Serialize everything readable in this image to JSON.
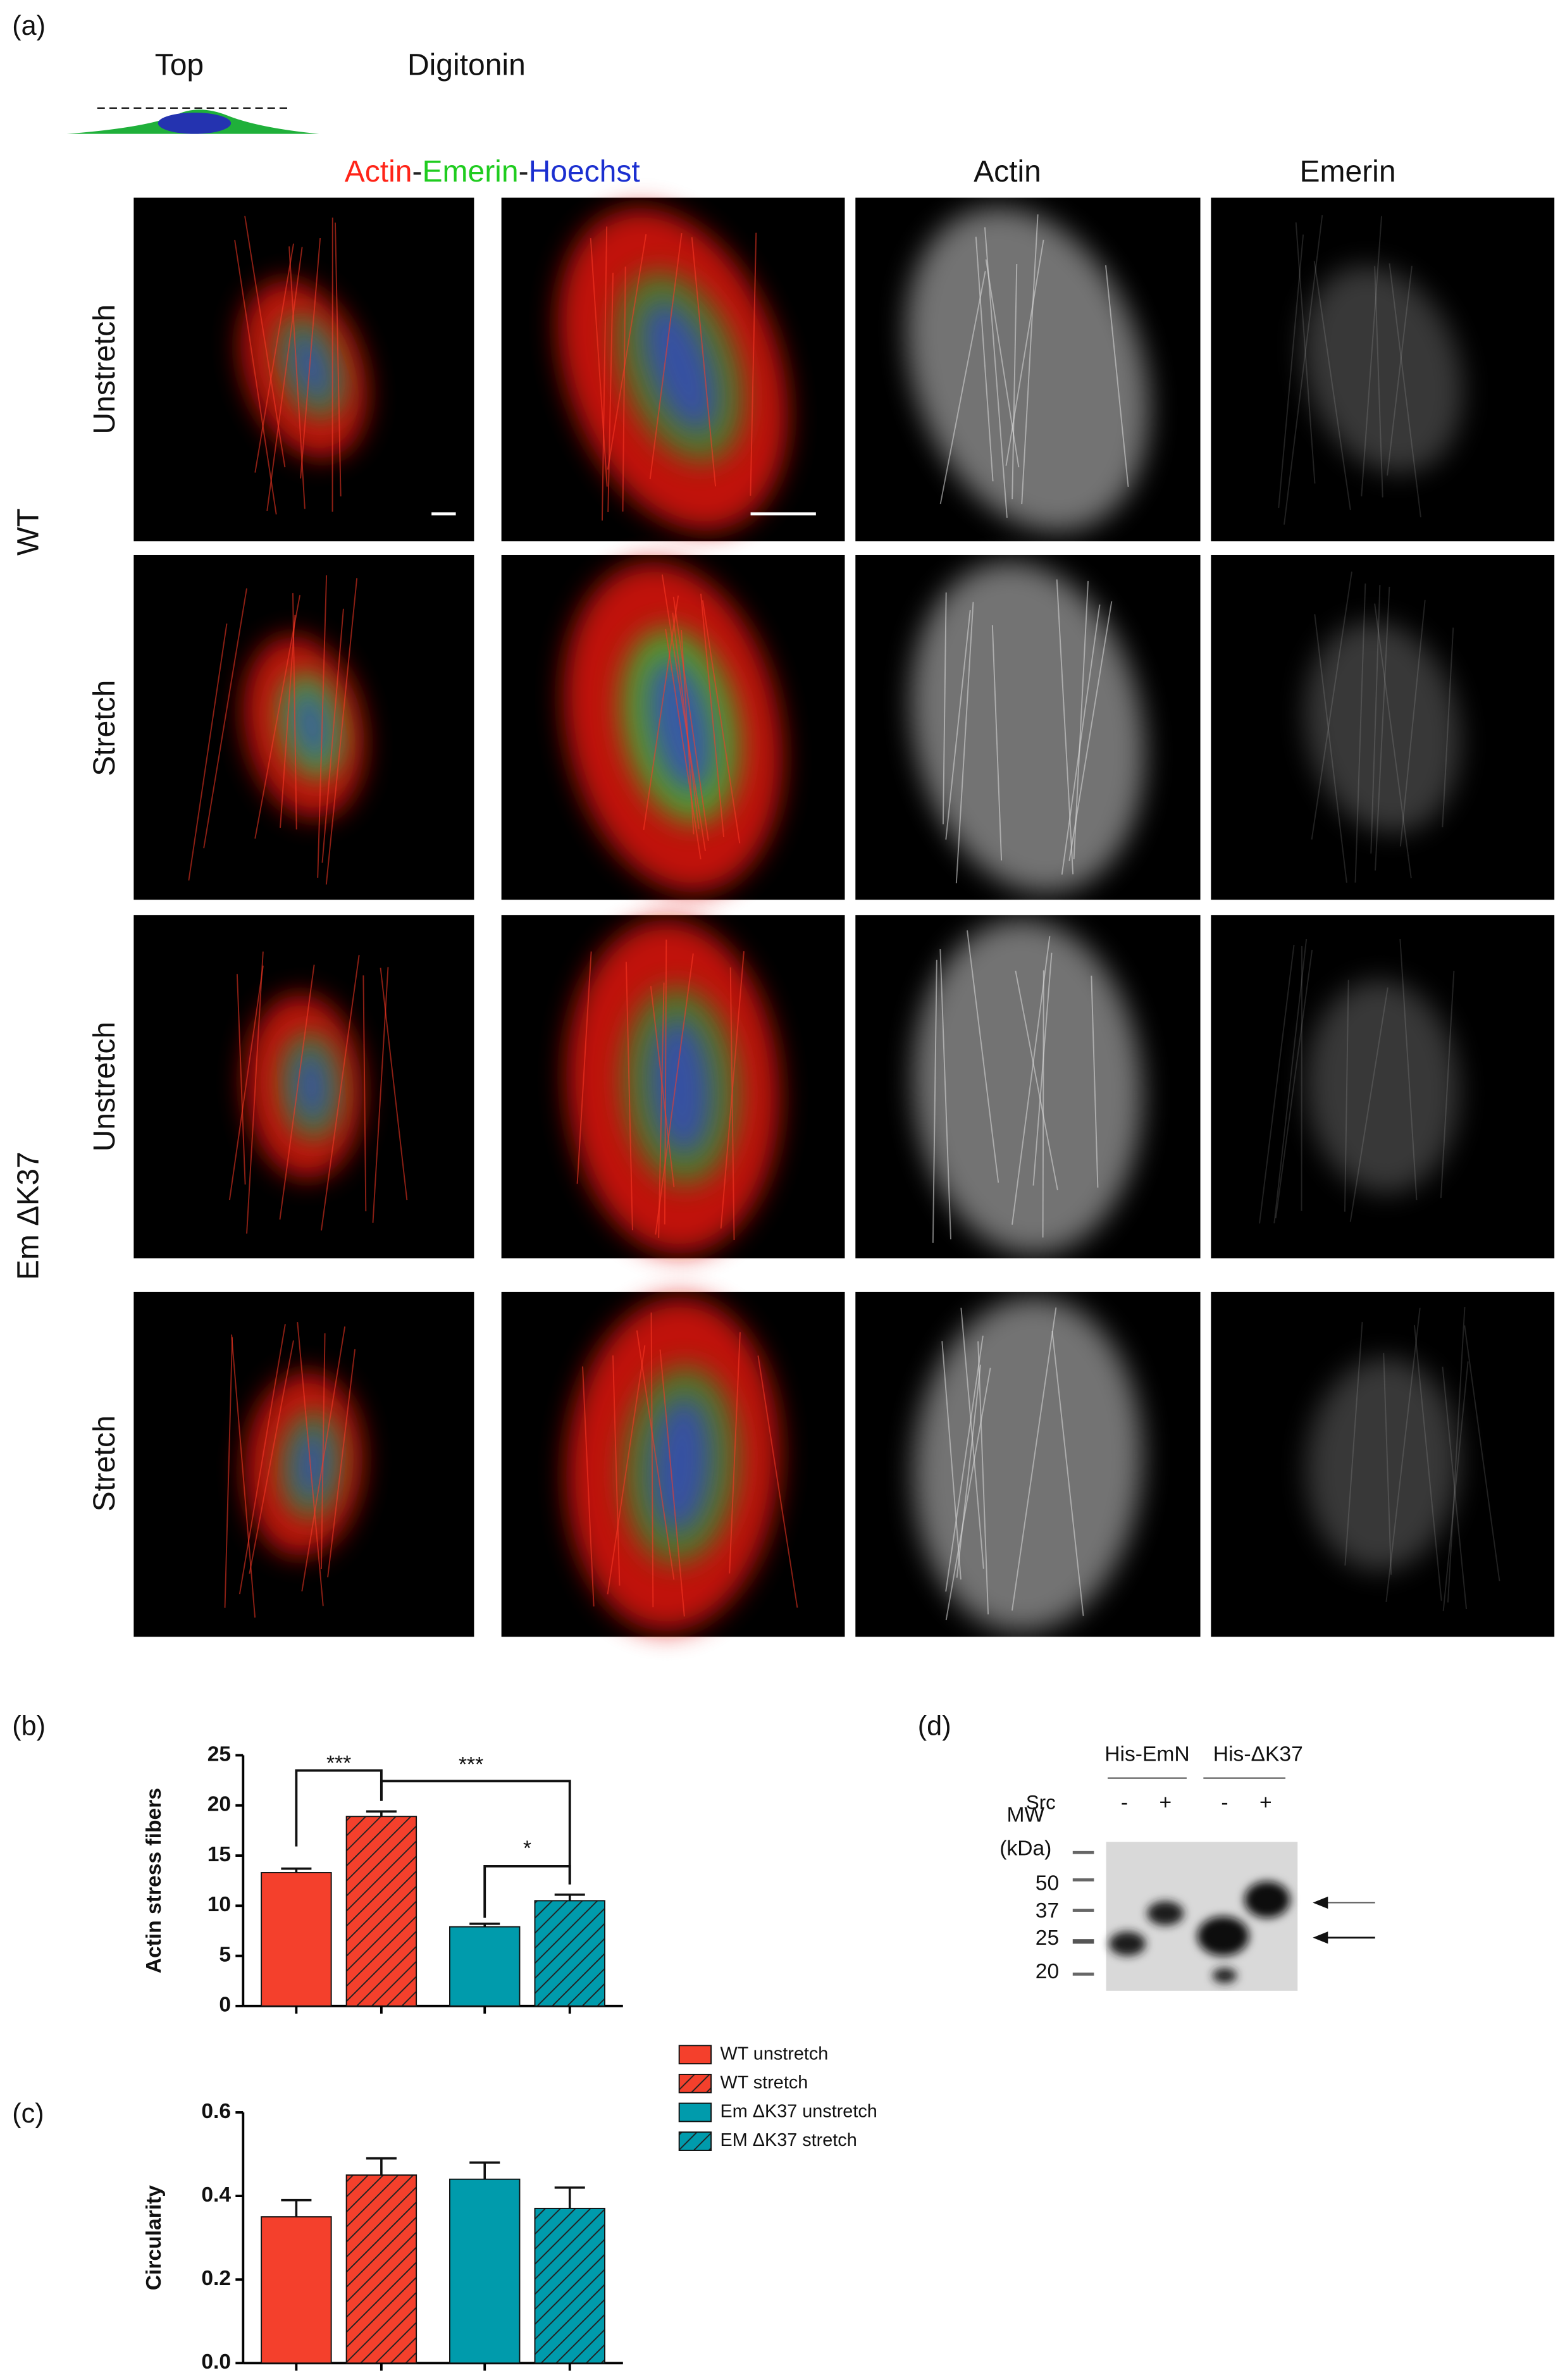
{
  "panel_a": {
    "label": "(a)",
    "schematic": {
      "top": "Top",
      "treatment": "Digitonin"
    },
    "merge_header": [
      {
        "text": "Actin",
        "color": "#ff2418"
      },
      {
        "text": "-",
        "color": "#222222"
      },
      {
        "text": "Emerin",
        "color": "#1fcc1f"
      },
      {
        "text": "-",
        "color": "#222222"
      },
      {
        "text": "Hoechst",
        "color": "#1b2fd0"
      }
    ],
    "column_headers": [
      "Actin",
      "Emerin"
    ],
    "groups": [
      {
        "label": "WT",
        "rows": [
          "Unstretch",
          "Stretch"
        ]
      },
      {
        "label": "Em ΔK37",
        "rows": [
          "Unstretch",
          "Stretch"
        ]
      }
    ]
  },
  "chart_data": [
    {
      "type": "bar",
      "panel_label": "(b)",
      "ylabel": "Actin stress fibers",
      "ylim": [
        0,
        25
      ],
      "yticks": [
        0,
        5,
        10,
        15,
        20,
        25
      ],
      "annotations": [
        "***",
        "***",
        "*"
      ],
      "series": [
        {
          "color": "#f4402c",
          "hatch": false,
          "values": [
            13.3
          ],
          "errors": [
            0.4
          ]
        },
        {
          "color": "#f4402c",
          "hatch": true,
          "values": [
            18.9
          ],
          "errors": [
            0.5
          ]
        },
        {
          "color": "#009bac",
          "hatch": false,
          "values": [
            7.9
          ],
          "errors": [
            0.3
          ]
        },
        {
          "color": "#009bac",
          "hatch": true,
          "values": [
            10.5
          ],
          "errors": [
            0.6
          ]
        }
      ]
    },
    {
      "type": "bar",
      "panel_label": "(c)",
      "ylabel": "Circularity",
      "ylim": [
        0,
        0.6
      ],
      "yticks": [
        {
          "value": 0,
          "label": "0.0"
        },
        0.2,
        0.4,
        0.6
      ],
      "series": [
        {
          "name": "WT unstretch",
          "color": "#f4402c",
          "hatch": false,
          "values": [
            0.35
          ],
          "errors": [
            0.04
          ]
        },
        {
          "name": "WT stretch",
          "color": "#f4402c",
          "hatch": true,
          "values": [
            0.45
          ],
          "errors": [
            0.04
          ]
        },
        {
          "name": "Em ΔK37 unstretch",
          "color": "#009bac",
          "hatch": false,
          "values": [
            0.44
          ],
          "errors": [
            0.04
          ]
        },
        {
          "name": "EM ΔK37 stretch",
          "color": "#009bac",
          "hatch": true,
          "values": [
            0.37
          ],
          "errors": [
            0.05
          ]
        }
      ]
    }
  ],
  "panel_d": {
    "label": "(d)",
    "lane_groups": [
      "His-EmN",
      "His-ΔK37"
    ],
    "src_label": "Src",
    "lanes": [
      "-",
      "+",
      "-",
      "+"
    ],
    "mw_label": "MW",
    "mw_unit": "(kDa)",
    "mw_markers": [
      50,
      37,
      25,
      20
    ]
  }
}
